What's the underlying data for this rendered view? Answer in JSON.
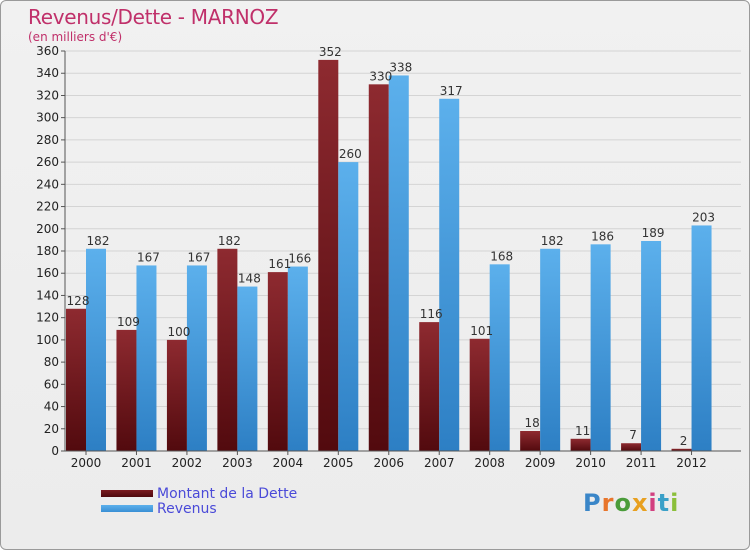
{
  "header": {
    "title": "Revenus/Dette - MARNOZ",
    "subtitle": "(en milliers d'€)"
  },
  "legend": {
    "debt_label": "Montant de la Dette",
    "revenue_label": "Revenus"
  },
  "logo": {
    "text": "Proxiti",
    "letters": [
      "P",
      "r",
      "o",
      "x",
      "i",
      "t",
      "i"
    ],
    "colors": [
      "#3a86c8",
      "#e8752b",
      "#4a9c3a",
      "#e8a020",
      "#d24080",
      "#3aa0c8",
      "#8bbf3a"
    ]
  },
  "colors": {
    "debt": "#7a1a1f",
    "revenue": "#4a9fe0",
    "axis_text": "#222222",
    "grid": "#d4d4d4"
  },
  "chart_data": {
    "type": "bar",
    "title": "Revenus/Dette - MARNOZ",
    "subtitle": "(en milliers d'€)",
    "categories": [
      "2000",
      "2001",
      "2002",
      "2003",
      "2004",
      "2005",
      "2006",
      "2007",
      "2008",
      "2009",
      "2010",
      "2011",
      "2012"
    ],
    "series": [
      {
        "name": "Montant de la Dette",
        "values": [
          128,
          109,
          100,
          182,
          161,
          352,
          330,
          116,
          101,
          18,
          11,
          7,
          2
        ]
      },
      {
        "name": "Revenus",
        "values": [
          182,
          167,
          167,
          148,
          166,
          260,
          338,
          317,
          168,
          182,
          186,
          189,
          203
        ]
      }
    ],
    "ylim": [
      0,
      360
    ],
    "ytick_step": 20,
    "grid": true,
    "legend_position": "bottom-left"
  }
}
